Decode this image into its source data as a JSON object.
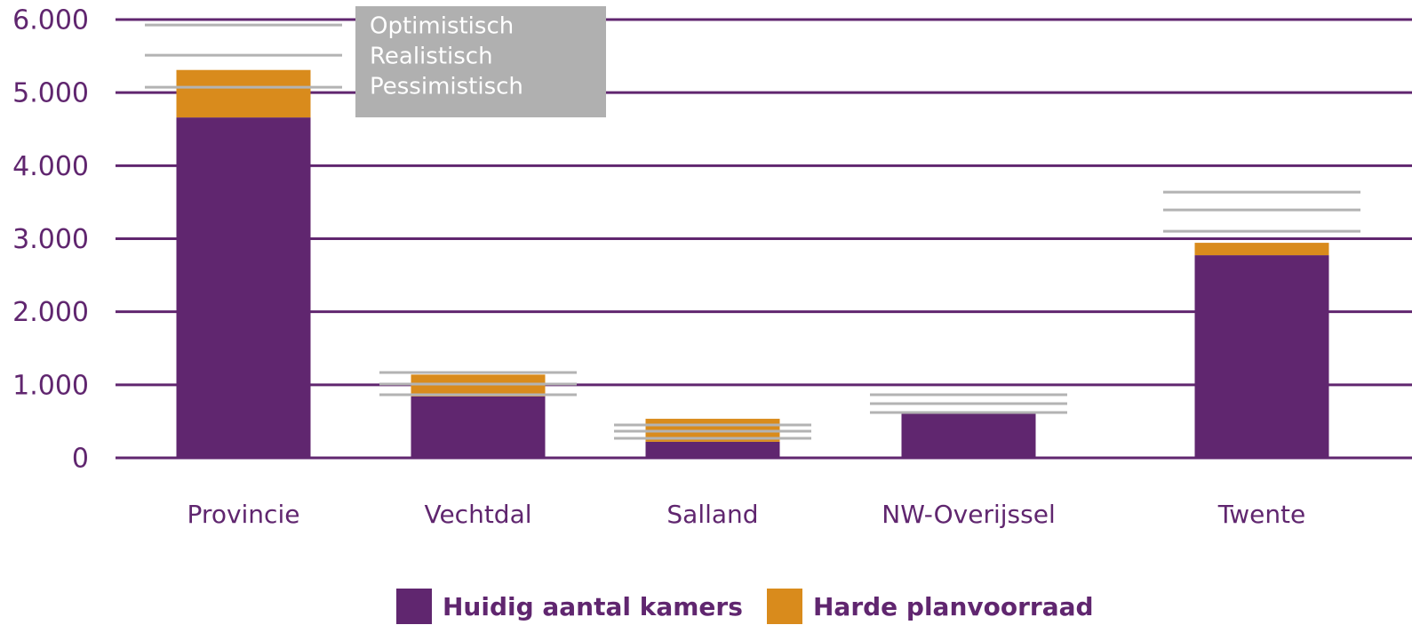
{
  "chart_data": {
    "type": "bar",
    "categories": [
      "Provincie",
      "Vechtdal",
      "Salland",
      "NW-Overijssel",
      "Twente"
    ],
    "series": [
      {
        "name": "Huidig aantal kamers",
        "color": "#60266f",
        "values": [
          4660,
          840,
          220,
          620,
          2774
        ]
      },
      {
        "name": "Harde planvoorraad",
        "color": "#d98b1c",
        "values": [
          650,
          300,
          315,
          0,
          170
        ]
      }
    ],
    "scenarios": [
      {
        "name": "Optimistisch",
        "color": "#b3b3b3",
        "values": [
          5925,
          1168,
          450,
          864,
          3637
        ]
      },
      {
        "name": "Realistisch",
        "color": "#b3b3b3",
        "values": [
          5511,
          1010,
          365,
          742,
          3394
        ]
      },
      {
        "name": "Pessimistisch",
        "color": "#b3b3b3",
        "values": [
          5073,
          864,
          268,
          620,
          3102
        ]
      }
    ],
    "ylim": [
      0,
      6000
    ],
    "yticks": [
      0,
      {
        "value": 1000,
        "label": "1.000"
      },
      {
        "value": 2000,
        "label": "2.000"
      },
      {
        "value": 3000,
        "label": "3.000"
      },
      {
        "value": 4000,
        "label": "4.000"
      },
      {
        "value": 5000,
        "label": "5.000"
      },
      {
        "value": 6000,
        "label": "6.000"
      }
    ],
    "grid": true
  }
}
